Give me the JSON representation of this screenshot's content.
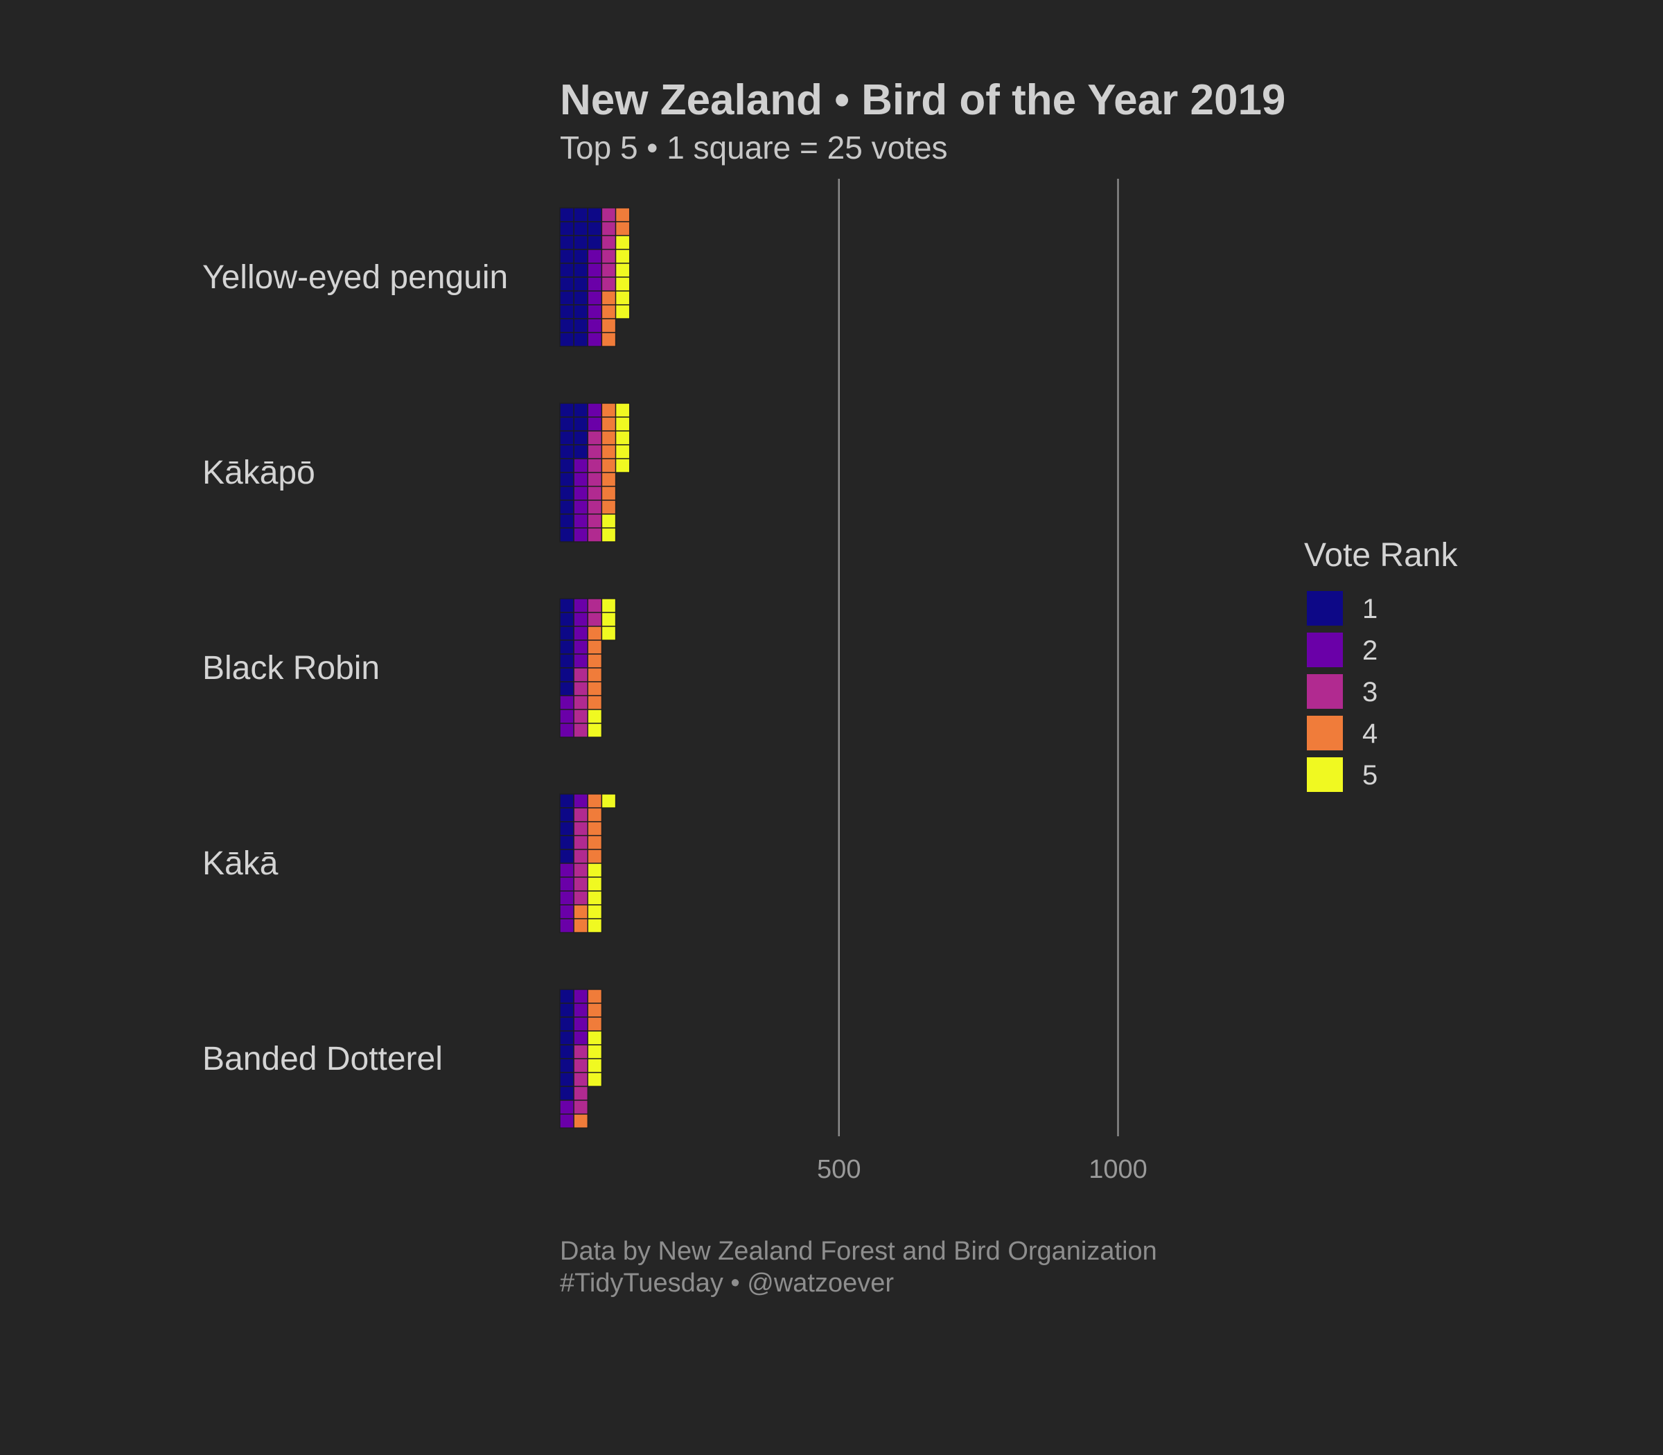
{
  "chart_data": {
    "type": "bar",
    "title": "New Zealand • Bird of the Year 2019",
    "subtitle": "Top 5 • 1 square = 25 votes",
    "caption_lines": [
      "Data by New Zealand Forest and Bird Organization",
      "#TidyTuesday • @watzoever"
    ],
    "categories": [
      "Yellow-eyed penguin",
      "Kākāpō",
      "Black Robin",
      "Kākā",
      "Banded Dotterel"
    ],
    "series": [
      {
        "name": "1",
        "color": "#0d0887",
        "values": [
          575,
          350,
          175,
          125,
          200
        ]
      },
      {
        "name": "2",
        "color": "#6a00a8",
        "values": [
          175,
          200,
          200,
          150,
          150
        ]
      },
      {
        "name": "3",
        "color": "#b12a90",
        "values": [
          150,
          200,
          175,
          175,
          125
        ]
      },
      {
        "name": "4",
        "color": "#f07c3a",
        "values": [
          150,
          200,
          150,
          175,
          100
        ]
      },
      {
        "name": "5",
        "color": "#f0f921",
        "values": [
          150,
          175,
          125,
          150,
          100
        ]
      }
    ],
    "votes_per_square": 25,
    "squares_per_column": 10,
    "x_ticks": [
      "500",
      "1000"
    ],
    "xlim": [
      0,
      1200
    ],
    "grid": "vertical major",
    "legend_title": "Vote Rank",
    "legend_position": "right",
    "background": "#252525"
  }
}
